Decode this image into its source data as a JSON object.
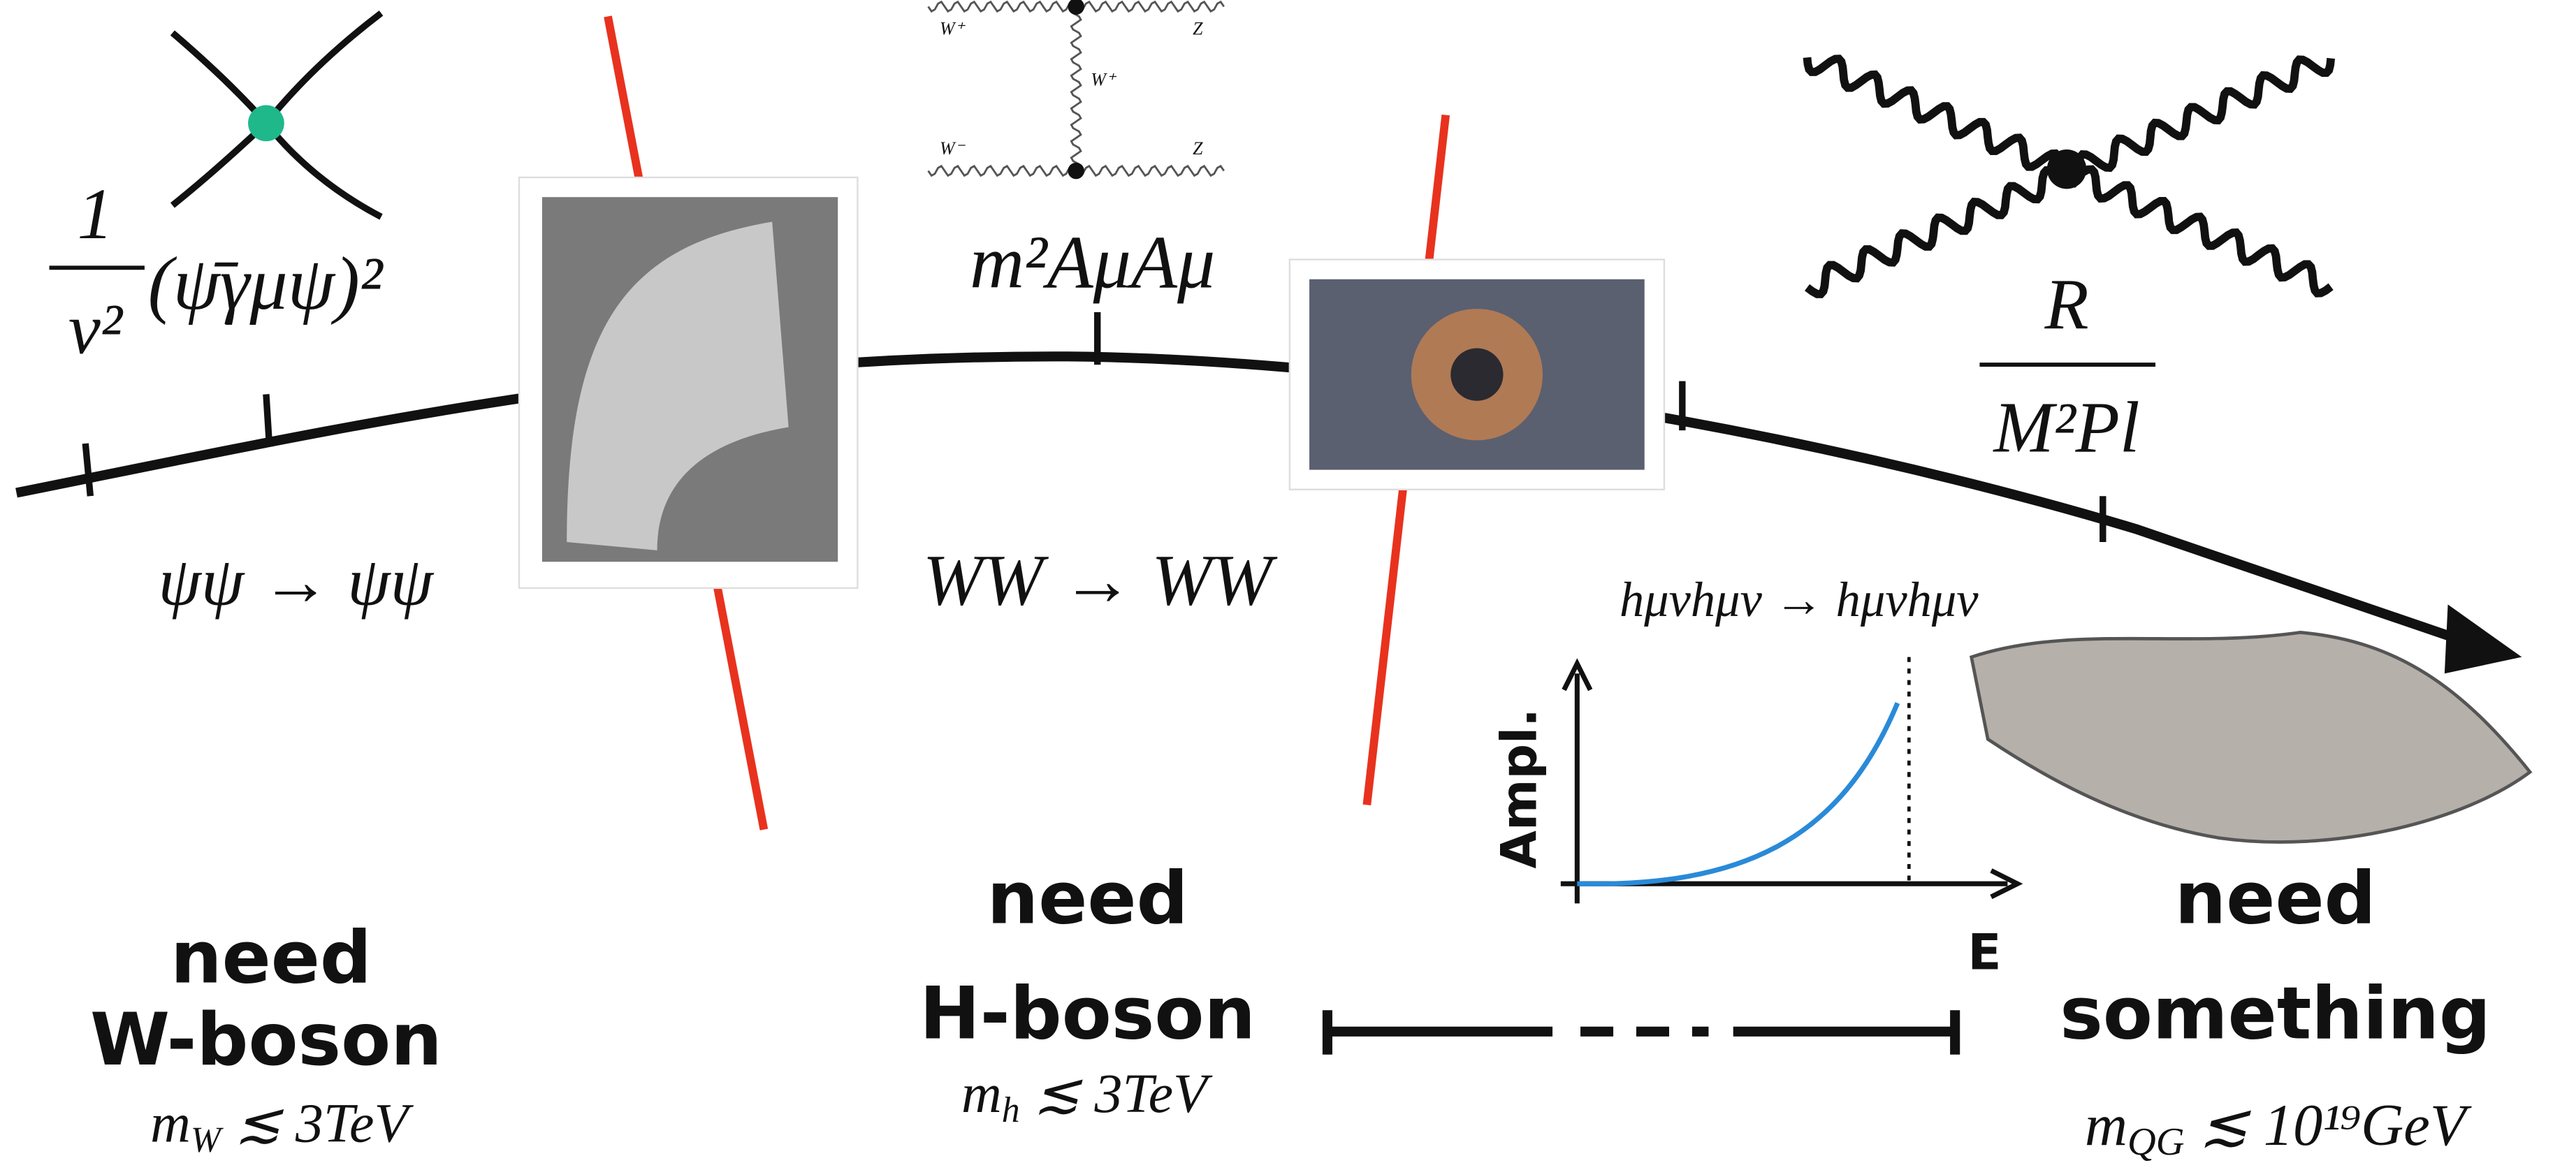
{
  "stages": [
    {
      "numerator": "1",
      "denominator": "v²",
      "expression": "(ψ̄γμψ)²",
      "process": "ψψ → ψψ",
      "need": "need",
      "particle": "W-boson",
      "bound": {
        "base": "m",
        "sub": "W",
        "rest": " ≲ 3TeV"
      }
    },
    {
      "expression": "m²AμAμ",
      "process": "WW → WW",
      "need": "need",
      "particle": "H-boson",
      "bound": {
        "base": "m",
        "sub": "h",
        "rest": " ≲ 3TeV"
      },
      "diagram_labels": [
        "W⁺",
        "Z",
        "W⁺",
        "W⁻",
        "Z"
      ]
    },
    {
      "numerator": "R",
      "denominator": "M²Pl",
      "process": "hμνhμν → hμνhμν",
      "need": "need",
      "particle": "something",
      "bound": {
        "base": "m",
        "sub": "QG",
        "rest": " ≲ 10¹⁹GeV"
      }
    }
  ],
  "plot": {
    "y_label": "Ampl.",
    "x_label": "E"
  }
}
